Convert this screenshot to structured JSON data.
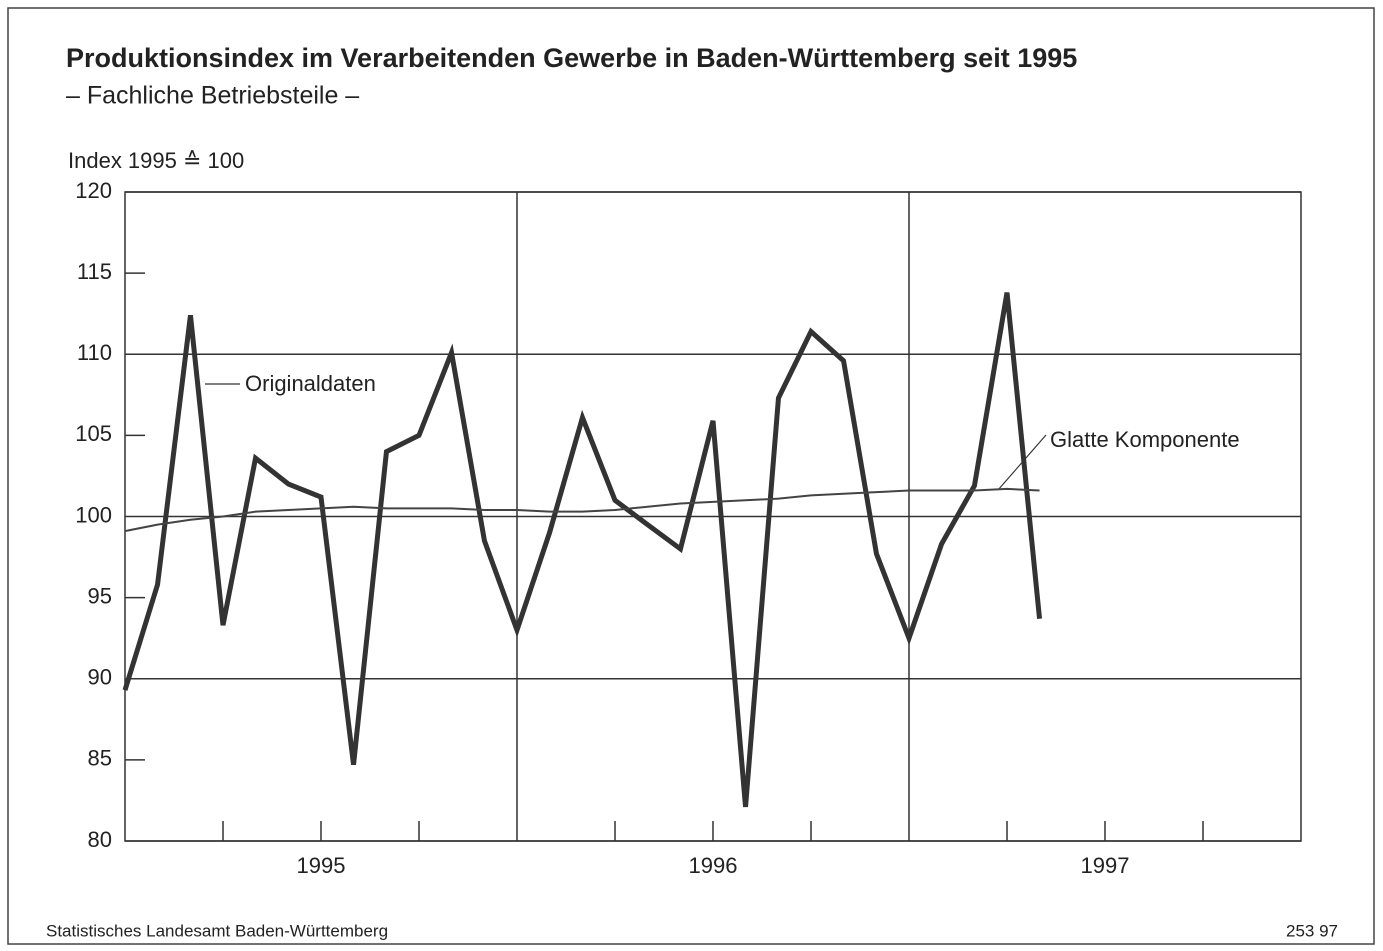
{
  "chart_data": {
    "type": "line",
    "title": "Produktionsindex im Verarbeitenden Gewerbe in Baden-Württemberg seit 1995",
    "subtitle": "– Fachliche Betriebsteile –",
    "y_label": "Index 1995 ≙ 100",
    "source": "Statistisches Landesamt Baden-Württemberg",
    "code": "253 97",
    "x": [
      1995,
      1995.083,
      1995.167,
      1995.25,
      1995.333,
      1995.417,
      1995.5,
      1995.583,
      1995.667,
      1995.75,
      1995.833,
      1995.917,
      1996,
      1996.083,
      1996.167,
      1996.25,
      1996.333,
      1996.417,
      1996.5,
      1996.583,
      1996.667,
      1996.75,
      1996.833,
      1996.917,
      1997,
      1997.083,
      1997.167,
      1997.25,
      1997.333
    ],
    "series": [
      {
        "name": "Originaldaten",
        "color": "#333333",
        "values": [
          89.3,
          95.8,
          112.4,
          93.3,
          103.6,
          102.0,
          101.2,
          84.7,
          104.0,
          105.0,
          110.1,
          98.5,
          93.0,
          99.0,
          106.1,
          101.0,
          99.5,
          98.0,
          105.9,
          82.1,
          107.3,
          111.4,
          109.6,
          97.7,
          92.5,
          98.3,
          101.9,
          113.8,
          93.7
        ]
      },
      {
        "name": "Glatte Komponente",
        "color": "#444444",
        "values": [
          99.1,
          99.5,
          99.8,
          100.0,
          100.3,
          100.4,
          100.5,
          100.6,
          100.5,
          100.5,
          100.5,
          100.4,
          100.4,
          100.3,
          100.3,
          100.4,
          100.6,
          100.8,
          100.9,
          101.0,
          101.1,
          101.3,
          101.4,
          101.5,
          101.6,
          101.6,
          101.6,
          101.7,
          101.6
        ]
      }
    ],
    "xlim": [
      1995,
      1998
    ],
    "xticks": [
      1995.25,
      1995.5,
      1995.75,
      1996,
      1996.25,
      1996.5,
      1996.75,
      1997,
      1997.25,
      1997.5,
      1997.75
    ],
    "xtick_labels": [
      {
        "value": 1995.5,
        "label": "1995"
      },
      {
        "value": 1996.5,
        "label": "1996"
      },
      {
        "value": 1997.5,
        "label": "1997"
      }
    ],
    "ylim": [
      80,
      120
    ],
    "yticks": [
      80,
      85,
      90,
      95,
      100,
      105,
      110,
      115,
      120
    ],
    "grid": true
  }
}
